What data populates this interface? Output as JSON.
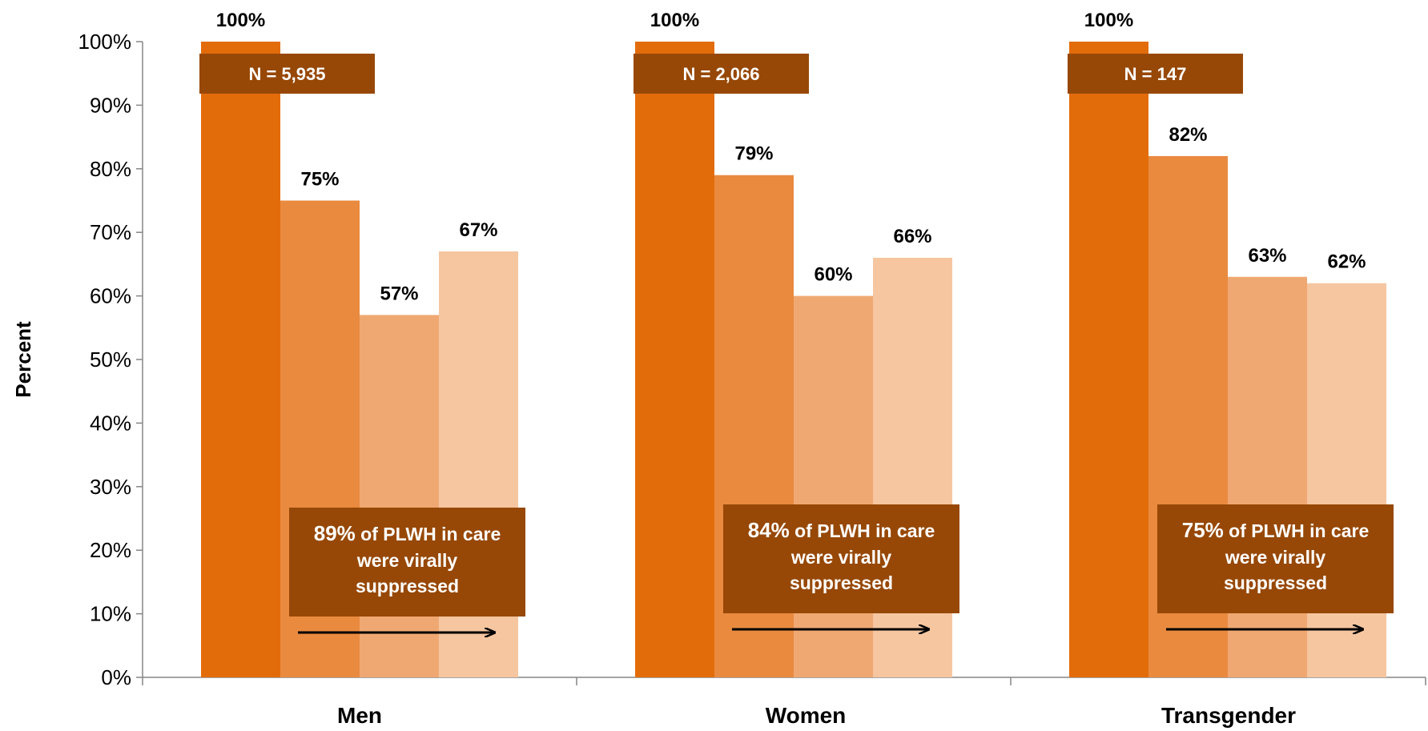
{
  "chart_data": {
    "type": "bar",
    "categories": [
      "Men",
      "Women",
      "Transgender"
    ],
    "series": [
      {
        "values": [
          100,
          100,
          100
        ]
      },
      {
        "values": [
          75,
          79,
          82
        ]
      },
      {
        "values": [
          57,
          60,
          63
        ]
      },
      {
        "values": [
          67,
          66,
          62
        ]
      }
    ],
    "data_labels": [
      [
        "100%",
        "75%",
        "57%",
        "67%"
      ],
      [
        "100%",
        "79%",
        "60%",
        "66%"
      ],
      [
        "100%",
        "82%",
        "63%",
        "62%"
      ]
    ],
    "n_labels": [
      "N = 5,935",
      "N = 2,066",
      "N = 147"
    ],
    "annotations": [
      {
        "pct": "89%",
        "lines": [
          " of PLWH in care",
          "were virally",
          "suppressed"
        ]
      },
      {
        "pct": "84%",
        "lines": [
          " of PLWH in care",
          "were virally",
          "suppressed"
        ]
      },
      {
        "pct": "75%",
        "lines": [
          " of PLWH in care",
          "were virally",
          "suppressed"
        ]
      }
    ],
    "ylabel": "Percent",
    "xlabel": "",
    "ylim": [
      0,
      100
    ],
    "yticks": [
      "0%",
      "10%",
      "20%",
      "30%",
      "40%",
      "50%",
      "60%",
      "70%",
      "80%",
      "90%",
      "100%"
    ],
    "grid": false,
    "legend": "none",
    "colors": [
      "#E36C0A",
      "#E98A3F",
      "#F0A872",
      "#F5C6A0"
    ],
    "label_box_color": "#974806",
    "arrow_color": "#000000"
  }
}
